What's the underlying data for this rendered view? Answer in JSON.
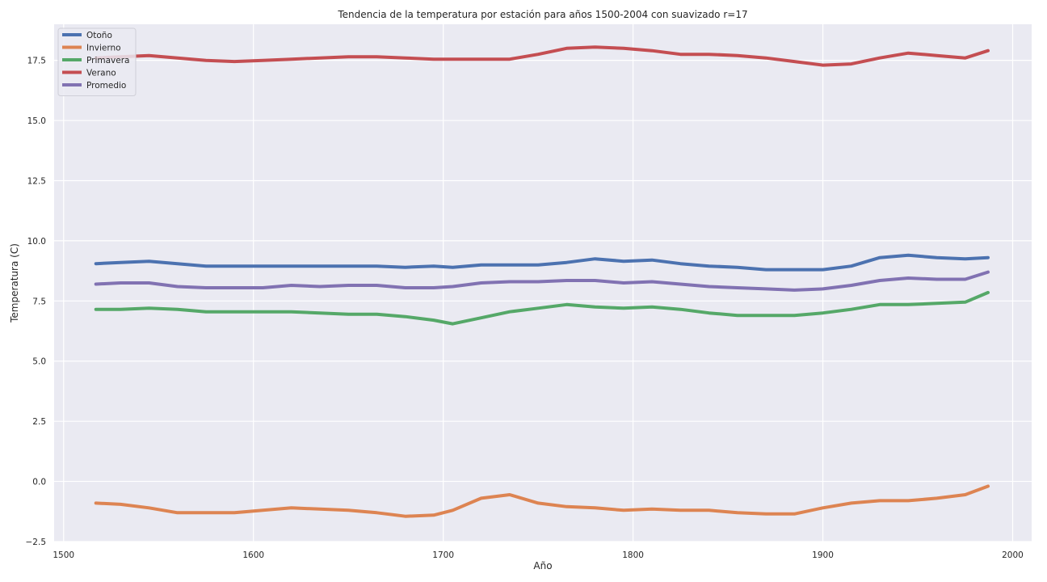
{
  "chart_data": {
    "type": "line",
    "title": "Tendencia de la temperatura por estación para años 1500-2004 con suavizado r=17",
    "xlabel": "Año",
    "ylabel": "Temperatura (C)",
    "xlim": [
      1495,
      2010
    ],
    "ylim": [
      -2.5,
      19.0
    ],
    "xticks": [
      1500,
      1600,
      1700,
      1800,
      1900,
      2000
    ],
    "yticks": [
      -2.5,
      0.0,
      2.5,
      5.0,
      7.5,
      10.0,
      12.5,
      15.0,
      17.5
    ],
    "ytick_labels": [
      "−2.5",
      "0.0",
      "2.5",
      "5.0",
      "7.5",
      "10.0",
      "12.5",
      "15.0",
      "17.5"
    ],
    "grid": true,
    "legend_position": "top-left",
    "x": [
      1517,
      1530,
      1545,
      1560,
      1575,
      1590,
      1605,
      1620,
      1635,
      1650,
      1665,
      1680,
      1695,
      1705,
      1720,
      1735,
      1750,
      1765,
      1780,
      1795,
      1810,
      1825,
      1840,
      1855,
      1870,
      1885,
      1900,
      1915,
      1930,
      1945,
      1960,
      1975,
      1987
    ],
    "series": [
      {
        "name": "Otoño",
        "color": "#4c72b0",
        "values": [
          9.05,
          9.1,
          9.15,
          9.05,
          8.95,
          8.95,
          8.95,
          8.95,
          8.95,
          8.95,
          8.95,
          8.9,
          8.95,
          8.9,
          9.0,
          9.0,
          9.0,
          9.1,
          9.25,
          9.15,
          9.2,
          9.05,
          8.95,
          8.9,
          8.8,
          8.8,
          8.8,
          8.95,
          9.3,
          9.4,
          9.3,
          9.25,
          9.3
        ]
      },
      {
        "name": "Invierno",
        "color": "#dd8452",
        "values": [
          -0.9,
          -0.95,
          -1.1,
          -1.3,
          -1.3,
          -1.3,
          -1.2,
          -1.1,
          -1.15,
          -1.2,
          -1.3,
          -1.45,
          -1.4,
          -1.2,
          -0.7,
          -0.55,
          -0.9,
          -1.05,
          -1.1,
          -1.2,
          -1.15,
          -1.2,
          -1.2,
          -1.3,
          -1.35,
          -1.35,
          -1.1,
          -0.9,
          -0.8,
          -0.8,
          -0.7,
          -0.55,
          -0.2
        ]
      },
      {
        "name": "Primavera",
        "color": "#55a868",
        "values": [
          7.15,
          7.15,
          7.2,
          7.15,
          7.05,
          7.05,
          7.05,
          7.05,
          7.0,
          6.95,
          6.95,
          6.85,
          6.7,
          6.55,
          6.8,
          7.05,
          7.2,
          7.35,
          7.25,
          7.2,
          7.25,
          7.15,
          7.0,
          6.9,
          6.9,
          6.9,
          7.0,
          7.15,
          7.35,
          7.35,
          7.4,
          7.45,
          7.85
        ]
      },
      {
        "name": "Verano",
        "color": "#c44e52",
        "values": [
          17.6,
          17.65,
          17.7,
          17.6,
          17.5,
          17.45,
          17.5,
          17.55,
          17.6,
          17.65,
          17.65,
          17.6,
          17.55,
          17.55,
          17.55,
          17.55,
          17.75,
          18.0,
          18.05,
          18.0,
          17.9,
          17.75,
          17.75,
          17.7,
          17.6,
          17.45,
          17.3,
          17.35,
          17.6,
          17.8,
          17.7,
          17.6,
          17.9
        ]
      },
      {
        "name": "Promedio",
        "color": "#8172b2",
        "values": [
          8.2,
          8.25,
          8.25,
          8.1,
          8.05,
          8.05,
          8.05,
          8.15,
          8.1,
          8.15,
          8.15,
          8.05,
          8.05,
          8.1,
          8.25,
          8.3,
          8.3,
          8.35,
          8.35,
          8.25,
          8.3,
          8.2,
          8.1,
          8.05,
          8.0,
          7.95,
          8.0,
          8.15,
          8.35,
          8.45,
          8.4,
          8.4,
          8.7
        ]
      }
    ]
  }
}
